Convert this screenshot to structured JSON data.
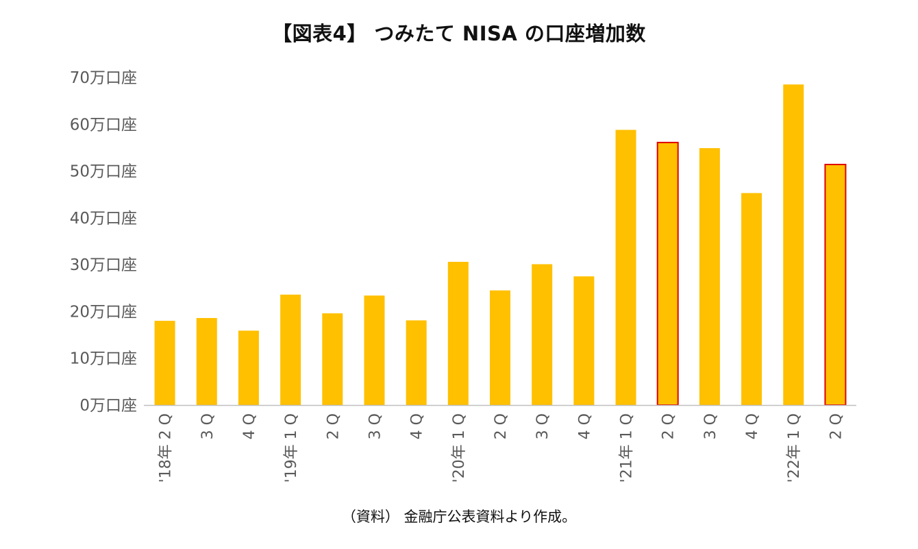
{
  "title": "【図表4】 つみたて NISA の口座増加数",
  "source_note": "（資料） 金融庁公表資料より作成。",
  "chart_data": {
    "type": "bar",
    "title": "【図表4】 つみたて NISA の口座増加数",
    "xlabel": "",
    "ylabel": "",
    "ylim": [
      0,
      70
    ],
    "yticks": [
      {
        "value": 0,
        "label": "0万口座"
      },
      {
        "value": 10,
        "label": "10万口座"
      },
      {
        "value": 20,
        "label": "20万口座"
      },
      {
        "value": 30,
        "label": "30万口座"
      },
      {
        "value": 40,
        "label": "40万口座"
      },
      {
        "value": 50,
        "label": "50万口座"
      },
      {
        "value": 60,
        "label": "60万口座"
      },
      {
        "value": 70,
        "label": "70万口座"
      }
    ],
    "categories": [
      "'18年 2 Q",
      "3 Q",
      "4 Q",
      "'19年 1 Q",
      "2 Q",
      "3 Q",
      "4 Q",
      "'20年 1 Q",
      "2 Q",
      "3 Q",
      "4 Q",
      "'21年 1 Q",
      "2 Q",
      "3 Q",
      "4 Q",
      "'22年 1 Q",
      "2 Q"
    ],
    "values": [
      18.0,
      18.6,
      15.9,
      23.6,
      19.6,
      23.4,
      18.1,
      30.6,
      24.5,
      30.1,
      27.5,
      58.8,
      56.1,
      54.9,
      45.3,
      68.5,
      51.4
    ],
    "highlighted": [
      false,
      false,
      false,
      false,
      false,
      false,
      false,
      false,
      false,
      false,
      false,
      false,
      true,
      false,
      false,
      false,
      true
    ],
    "colors": {
      "bar_fill": "#FFC000",
      "highlight_outline": "#E00000",
      "axis": "#BFBFBF"
    },
    "grid": false,
    "legend": "none"
  }
}
